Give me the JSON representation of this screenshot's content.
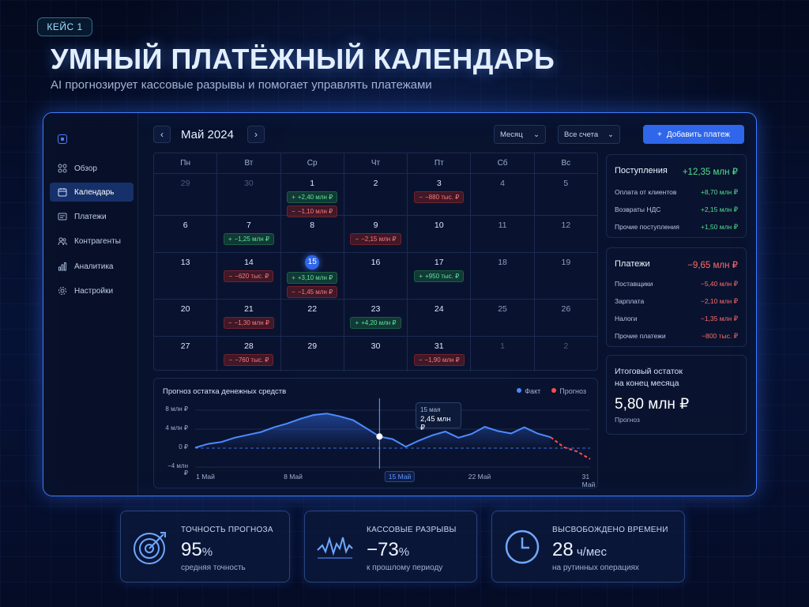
{
  "badge": "КЕЙС 1",
  "hero": {
    "title": "УМНЫЙ ПЛАТЁЖНЫЙ КАЛЕНДАРЬ",
    "subtitle": "AI прогнозирует кассовые разрывы и помогает управлять платежами"
  },
  "sidebar": {
    "items": [
      {
        "label": "Обзор",
        "icon": "overview-icon",
        "active": false
      },
      {
        "label": "Календарь",
        "icon": "calendar-icon",
        "active": true
      },
      {
        "label": "Платежи",
        "icon": "payments-icon",
        "active": false
      },
      {
        "label": "Контрагенты",
        "icon": "contractors-icon",
        "active": false
      },
      {
        "label": "Аналитика",
        "icon": "analytics-icon",
        "active": false
      },
      {
        "label": "Настройки",
        "icon": "settings-icon",
        "active": false
      }
    ]
  },
  "toolbar": {
    "prev": "‹",
    "next": "›",
    "month": "Май 2024",
    "view_select": "Месяц",
    "account_select": "Все счета",
    "add_button": "Добавить платеж",
    "add_plus": "+"
  },
  "calendar": {
    "weekdays": [
      "Пн",
      "Вт",
      "Ср",
      "Чт",
      "Пт",
      "Сб",
      "Вс"
    ],
    "weeks": [
      [
        {
          "day": "29",
          "muted": true,
          "items": []
        },
        {
          "day": "30",
          "muted": true,
          "items": []
        },
        {
          "day": "1",
          "items": [
            {
              "type": "pos",
              "text": "+2,40 млн ₽"
            },
            {
              "type": "neg",
              "text": "−1,10 млн ₽"
            }
          ]
        },
        {
          "day": "2",
          "items": []
        },
        {
          "day": "3",
          "items": [
            {
              "type": "neg",
              "text": "−880 тыс. ₽"
            }
          ]
        },
        {
          "day": "4",
          "weekend": true,
          "items": []
        },
        {
          "day": "5",
          "weekend": true,
          "items": []
        }
      ],
      [
        {
          "day": "6",
          "items": []
        },
        {
          "day": "7",
          "items": [
            {
              "type": "pos",
              "text": "−1,25 млн ₽"
            }
          ]
        },
        {
          "day": "8",
          "items": []
        },
        {
          "day": "9",
          "items": [
            {
              "type": "neg",
              "text": "−2,15 млн ₽"
            }
          ]
        },
        {
          "day": "10",
          "items": []
        },
        {
          "day": "11",
          "weekend": true,
          "items": []
        },
        {
          "day": "12",
          "weekend": true,
          "items": []
        }
      ],
      [
        {
          "day": "13",
          "items": []
        },
        {
          "day": "14",
          "items": [
            {
              "type": "neg",
              "text": "−620 тыс. ₽"
            }
          ]
        },
        {
          "day": "15",
          "today": true,
          "items": [
            {
              "type": "pos",
              "text": "+3,10 млн ₽"
            },
            {
              "type": "neg",
              "text": "−1,45 млн ₽"
            }
          ]
        },
        {
          "day": "16",
          "items": []
        },
        {
          "day": "17",
          "items": [
            {
              "type": "pos",
              "text": "+950 тыс. ₽"
            }
          ]
        },
        {
          "day": "18",
          "weekend": true,
          "items": []
        },
        {
          "day": "19",
          "weekend": true,
          "items": []
        }
      ],
      [
        {
          "day": "20",
          "items": []
        },
        {
          "day": "21",
          "items": [
            {
              "type": "neg",
              "text": "−1,30 млн ₽"
            }
          ]
        },
        {
          "day": "22",
          "items": []
        },
        {
          "day": "23",
          "items": [
            {
              "type": "pos",
              "text": "+4,20 млн ₽"
            }
          ]
        },
        {
          "day": "24",
          "items": []
        },
        {
          "day": "25",
          "weekend": true,
          "items": []
        },
        {
          "day": "26",
          "weekend": true,
          "items": []
        }
      ],
      [
        {
          "day": "27",
          "items": []
        },
        {
          "day": "28",
          "items": [
            {
              "type": "neg",
              "text": "−760 тыс. ₽"
            }
          ]
        },
        {
          "day": "29",
          "items": []
        },
        {
          "day": "30",
          "items": []
        },
        {
          "day": "31",
          "items": [
            {
              "type": "neg",
              "text": "−1,90 млн ₽"
            }
          ]
        },
        {
          "day": "1",
          "muted": true,
          "items": []
        },
        {
          "day": "2",
          "muted": true,
          "items": []
        }
      ]
    ]
  },
  "forecast": {
    "title": "Прогноз остатка денежных средств",
    "legend_fact": "Факт",
    "legend_forecast": "Прогноз",
    "tooltip_date": "15 мая",
    "tooltip_value": "2,45 млн ₽",
    "y_labels": [
      "8 млн ₽",
      "4 млн ₽",
      "0 ₽",
      "−4 млн ₽"
    ],
    "x_labels": [
      "1 Май",
      "8 Май",
      "15 Май",
      "22 Май",
      "31 Май"
    ],
    "colors": {
      "fact": "#4d8bff",
      "forecast": "#ff4d4d"
    }
  },
  "chart_data": {
    "type": "line",
    "title": "Прогноз остатка денежных средств",
    "xlabel": "",
    "ylabel": "",
    "ylim": [
      -4,
      8
    ],
    "y_ticks": [
      "8 млн ₽",
      "4 млн ₽",
      "0 ₽",
      "−4 млн ₽"
    ],
    "x_ticks": [
      "1 Май",
      "8 Май",
      "15 Май",
      "22 Май",
      "31 Май"
    ],
    "grid": true,
    "legend": "top-right",
    "highlight": {
      "x": 15,
      "label": "15 мая",
      "value": 2.45
    },
    "series": [
      {
        "name": "Факт",
        "x": [
          1,
          2,
          3,
          4,
          5,
          6,
          7,
          8,
          9,
          10,
          11,
          12,
          13,
          14,
          15,
          16,
          17,
          18,
          19,
          20,
          21,
          22,
          23,
          24,
          25,
          26,
          27,
          28
        ],
        "values": [
          0.1,
          0.9,
          1.3,
          2.2,
          2.8,
          3.4,
          4.4,
          5.2,
          6.2,
          7.0,
          7.3,
          6.7,
          5.9,
          4.2,
          2.45,
          1.9,
          0.3,
          1.6,
          2.7,
          3.5,
          2.2,
          3.0,
          4.5,
          3.6,
          3.1,
          4.4,
          3.1,
          2.3
        ]
      },
      {
        "name": "Прогноз",
        "x": [
          28,
          29,
          30,
          31
        ],
        "values": [
          2.3,
          0.2,
          -0.7,
          -2.3
        ]
      }
    ]
  },
  "inflows": {
    "title": "Поступления",
    "total": "+12,35 млн ₽",
    "rows": [
      {
        "label": "Оплата от клиентов",
        "value": "+8,70 млн ₽"
      },
      {
        "label": "Возвраты НДС",
        "value": "+2,15 млн ₽"
      },
      {
        "label": "Прочие поступления",
        "value": "+1,50 млн ₽"
      }
    ]
  },
  "outflows": {
    "title": "Платежи",
    "total": "−9,65 млн ₽",
    "rows": [
      {
        "label": "Поставщики",
        "value": "−5,40 млн ₽"
      },
      {
        "label": "Зарплата",
        "value": "−2,10 млн ₽"
      },
      {
        "label": "Налоги",
        "value": "−1,35 млн ₽"
      },
      {
        "label": "Прочие платежи",
        "value": "−800 тыс. ₽"
      }
    ]
  },
  "balance": {
    "title_line1": "Итоговый остаток",
    "title_line2": "на конец месяца",
    "value": "5,80 млн ₽",
    "note": "Прогноз"
  },
  "stats": [
    {
      "label": "ТОЧНОСТЬ ПРОГНОЗА",
      "value": "95",
      "unit": "%",
      "note": "средняя точность",
      "icon": "target-icon"
    },
    {
      "label": "КАССОВЫЕ РАЗРЫВЫ",
      "value": "−73",
      "unit": "%",
      "note": "к прошлому периоду",
      "icon": "pulse-chart-icon"
    },
    {
      "label": "ВЫСВОБОЖДЕНО ВРЕМЕНИ",
      "value": "28",
      "unit": " ч/мес",
      "note": "на рутинных операциях",
      "icon": "clock-icon"
    }
  ]
}
